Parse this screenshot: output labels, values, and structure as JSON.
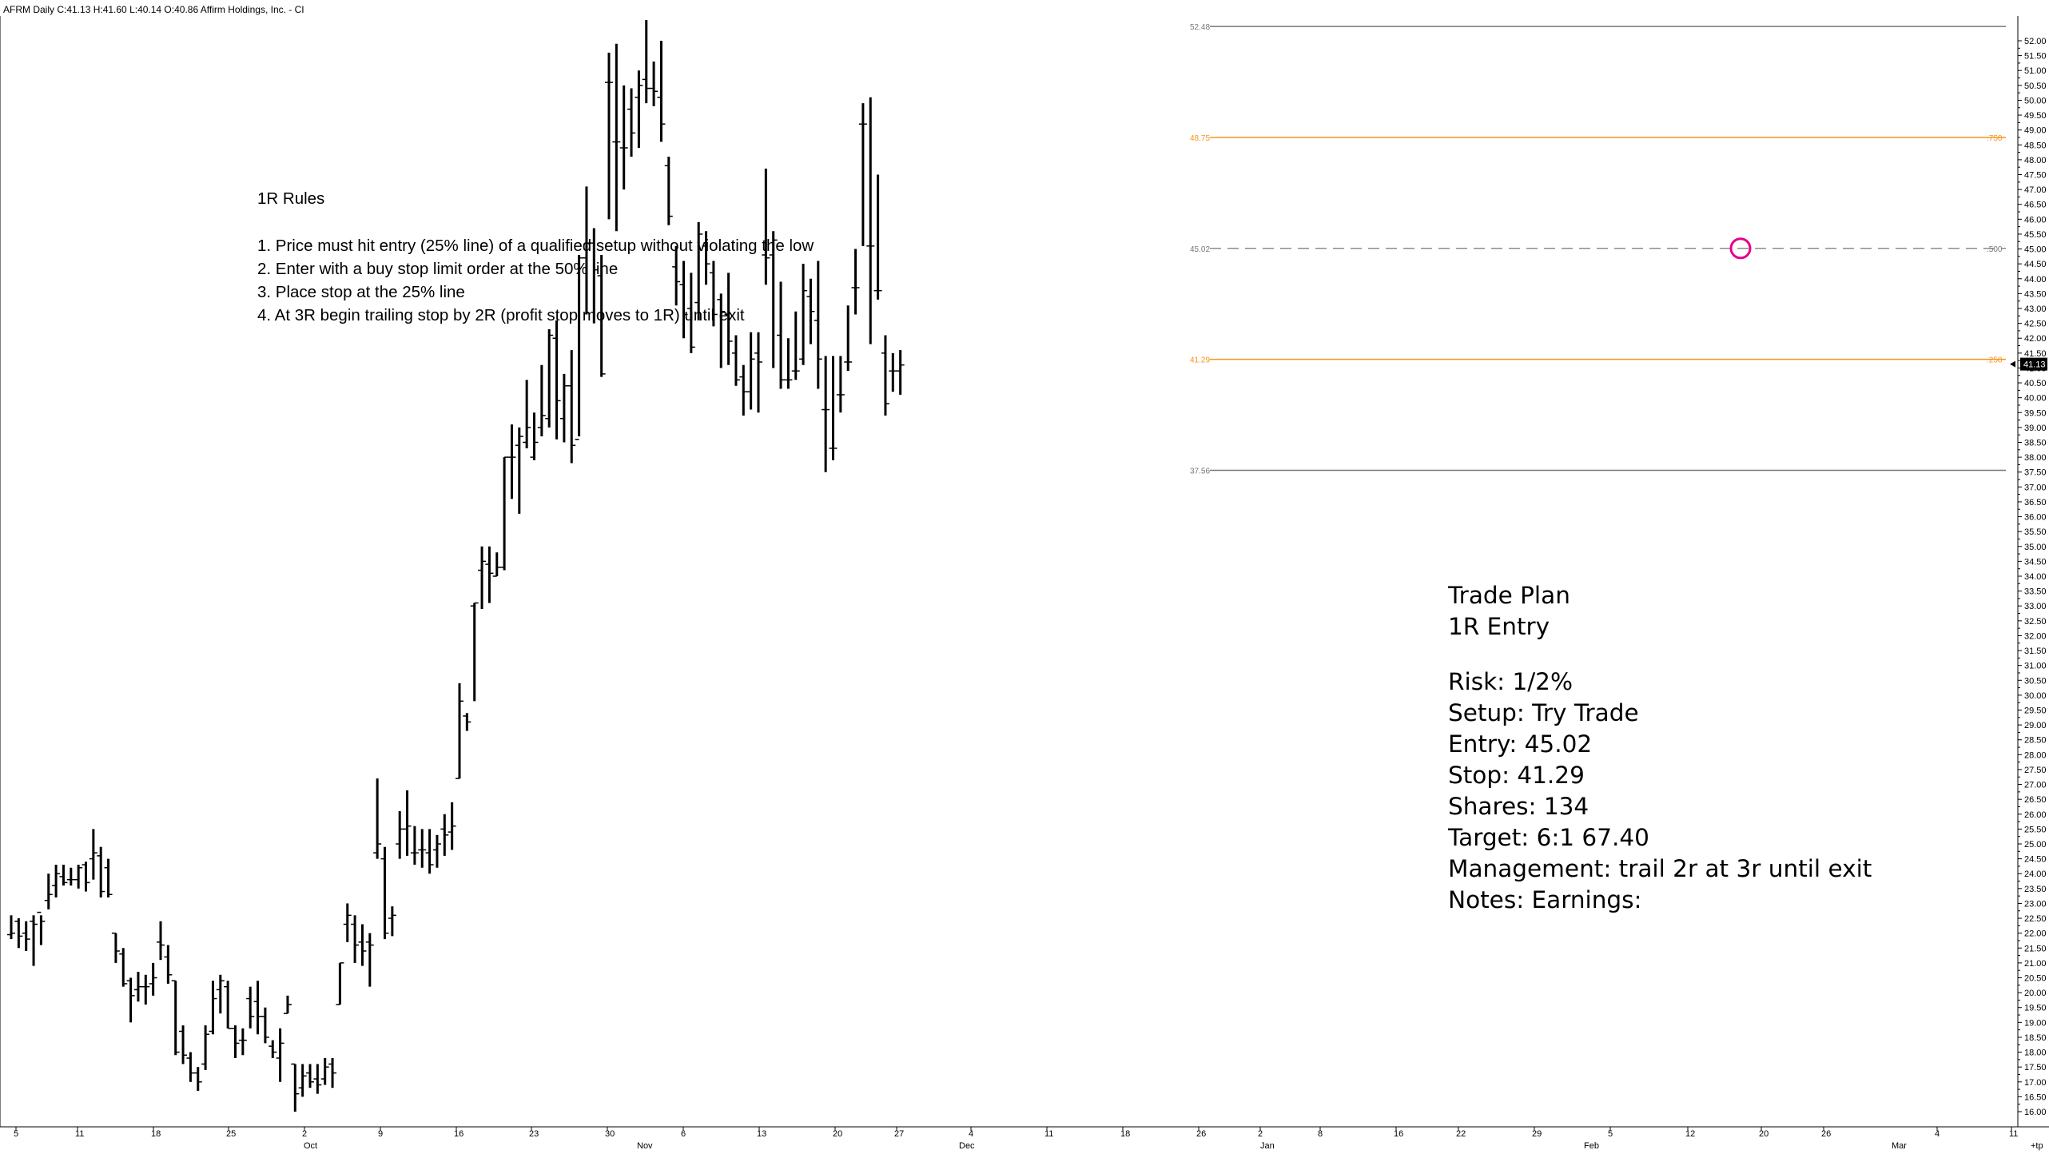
{
  "chart_data": {
    "type": "ohlc-bar",
    "header": "AFRM Daily C:41.13 H:41.60 L:40.14 O:40.86 Affirm Holdings, Inc. - CI",
    "y_range": [
      15.5,
      52.95
    ],
    "y_ticks": [
      "52.00",
      "51.50",
      "51.00",
      "50.50",
      "50.00",
      "49.50",
      "49.00",
      "48.50",
      "48.00",
      "47.50",
      "47.00",
      "46.50",
      "46.00",
      "45.50",
      "45.00",
      "44.50",
      "44.00",
      "43.50",
      "43.00",
      "42.50",
      "42.00",
      "41.50",
      "41.00",
      "40.50",
      "40.00",
      "39.50",
      "39.00",
      "38.50",
      "38.00",
      "37.50",
      "37.00",
      "36.50",
      "36.00",
      "35.50",
      "35.00",
      "34.50",
      "34.00",
      "33.50",
      "33.00",
      "32.50",
      "32.00",
      "31.50",
      "31.00",
      "30.50",
      "30.00",
      "29.50",
      "29.00",
      "28.50",
      "28.00",
      "27.50",
      "27.00",
      "26.50",
      "26.00",
      "25.50",
      "25.00",
      "24.50",
      "24.00",
      "23.50",
      "23.00",
      "22.50",
      "22.00",
      "21.50",
      "21.00",
      "20.50",
      "20.00",
      "19.50",
      "19.00",
      "18.50",
      "18.00",
      "17.50",
      "17.00",
      "16.50",
      "16.00"
    ],
    "last_price_label": "41.13",
    "x_day_labels": [
      "5",
      "11",
      "18",
      "25",
      "2",
      "9",
      "16",
      "23",
      "30",
      "6",
      "13",
      "20",
      "27",
      "4",
      "11",
      "18",
      "26",
      "2",
      "8",
      "16",
      "22",
      "29",
      "5",
      "12",
      "20",
      "26",
      "4",
      "11"
    ],
    "x_month_labels": [
      "Oct",
      "Nov",
      "Dec",
      "Jan",
      "Feb",
      "Mar"
    ],
    "x_end_label": "+tp",
    "bars": [
      {
        "o": 21.95,
        "h": 22.6,
        "l": 21.8,
        "c": 22.0
      },
      {
        "o": 22.4,
        "h": 22.5,
        "l": 21.5,
        "c": 21.9
      },
      {
        "o": 22.0,
        "h": 22.4,
        "l": 21.4,
        "c": 21.8
      },
      {
        "o": 22.4,
        "h": 22.6,
        "l": 20.9,
        "c": 22.3
      },
      {
        "o": 22.7,
        "h": 22.6,
        "l": 21.6,
        "c": 22.4
      },
      {
        "o": 23.1,
        "h": 24.0,
        "l": 22.8,
        "c": 23.3
      },
      {
        "o": 23.6,
        "h": 24.3,
        "l": 23.2,
        "c": 24.0
      },
      {
        "o": 23.9,
        "h": 24.3,
        "l": 23.6,
        "c": 23.7
      },
      {
        "o": 23.8,
        "h": 24.2,
        "l": 23.6,
        "c": 23.8
      },
      {
        "o": 23.8,
        "h": 24.3,
        "l": 23.5,
        "c": 24.2
      },
      {
        "o": 24.3,
        "h": 24.4,
        "l": 23.4,
        "c": 23.7
      },
      {
        "o": 24.5,
        "h": 25.5,
        "l": 23.8,
        "c": 24.7
      },
      {
        "o": 24.6,
        "h": 24.9,
        "l": 23.2,
        "c": 23.4
      },
      {
        "o": 24.2,
        "h": 24.5,
        "l": 23.2,
        "c": 23.3
      },
      {
        "o": 22.0,
        "h": 22.0,
        "l": 21.0,
        "c": 21.4
      },
      {
        "o": 21.3,
        "h": 21.5,
        "l": 20.2,
        "c": 20.3
      },
      {
        "o": 20.4,
        "h": 20.5,
        "l": 19.0,
        "c": 19.9
      },
      {
        "o": 20.1,
        "h": 20.7,
        "l": 19.7,
        "c": 20.2
      },
      {
        "o": 20.2,
        "h": 20.6,
        "l": 19.6,
        "c": 20.2
      },
      {
        "o": 20.3,
        "h": 21.0,
        "l": 19.9,
        "c": 20.5
      },
      {
        "o": 21.7,
        "h": 22.4,
        "l": 21.1,
        "c": 21.6
      },
      {
        "o": 21.2,
        "h": 21.6,
        "l": 20.3,
        "c": 20.6
      },
      {
        "o": 20.4,
        "h": 20.4,
        "l": 17.9,
        "c": 18.0
      },
      {
        "o": 18.7,
        "h": 18.9,
        "l": 17.6,
        "c": 17.9
      },
      {
        "o": 17.8,
        "h": 18.0,
        "l": 17.0,
        "c": 17.3
      },
      {
        "o": 17.3,
        "h": 17.5,
        "l": 16.7,
        "c": 17.0
      },
      {
        "o": 17.6,
        "h": 18.9,
        "l": 17.4,
        "c": 18.6
      },
      {
        "o": 18.7,
        "h": 20.4,
        "l": 18.6,
        "c": 19.8
      },
      {
        "o": 20.1,
        "h": 20.6,
        "l": 19.3,
        "c": 20.4
      },
      {
        "o": 20.2,
        "h": 20.4,
        "l": 18.8,
        "c": 18.8
      },
      {
        "o": 18.8,
        "h": 18.9,
        "l": 17.8,
        "c": 18.3
      },
      {
        "o": 18.4,
        "h": 18.8,
        "l": 17.9,
        "c": 18.4
      },
      {
        "o": 19.8,
        "h": 20.2,
        "l": 18.8,
        "c": 19.2
      },
      {
        "o": 19.7,
        "h": 20.4,
        "l": 18.6,
        "c": 19.2
      },
      {
        "o": 19.2,
        "h": 19.5,
        "l": 18.3,
        "c": 18.5
      },
      {
        "o": 18.2,
        "h": 18.4,
        "l": 17.8,
        "c": 18.0
      },
      {
        "o": 17.8,
        "h": 18.8,
        "l": 17.0,
        "c": 18.3
      },
      {
        "o": 19.3,
        "h": 19.9,
        "l": 19.3,
        "c": 19.6
      },
      {
        "o": 17.6,
        "h": 17.6,
        "l": 16.0,
        "c": 16.6
      },
      {
        "o": 16.8,
        "h": 17.6,
        "l": 16.5,
        "c": 17.2
      },
      {
        "o": 17.3,
        "h": 17.6,
        "l": 16.8,
        "c": 17.0
      },
      {
        "o": 17.1,
        "h": 17.6,
        "l": 16.6,
        "c": 16.9
      },
      {
        "o": 17.1,
        "h": 17.8,
        "l": 16.9,
        "c": 17.5
      },
      {
        "o": 17.6,
        "h": 17.8,
        "l": 16.8,
        "c": 17.3
      },
      {
        "o": 19.6,
        "h": 21.0,
        "l": 19.6,
        "c": 21.0
      },
      {
        "o": 22.3,
        "h": 23.0,
        "l": 21.7,
        "c": 22.6
      },
      {
        "o": 22.3,
        "h": 22.6,
        "l": 21.0,
        "c": 21.6
      },
      {
        "o": 21.7,
        "h": 22.3,
        "l": 20.9,
        "c": 21.4
      },
      {
        "o": 21.7,
        "h": 22.0,
        "l": 20.2,
        "c": 21.6
      },
      {
        "o": 24.7,
        "h": 27.2,
        "l": 24.5,
        "c": 25.0
      },
      {
        "o": 24.5,
        "h": 24.9,
        "l": 21.8,
        "c": 22.0
      },
      {
        "o": 22.5,
        "h": 22.9,
        "l": 21.9,
        "c": 22.6
      },
      {
        "o": 25.0,
        "h": 26.1,
        "l": 24.5,
        "c": 25.5
      },
      {
        "o": 25.5,
        "h": 26.8,
        "l": 24.6,
        "c": 25.6
      },
      {
        "o": 24.7,
        "h": 25.6,
        "l": 24.3,
        "c": 24.7
      },
      {
        "o": 24.8,
        "h": 25.5,
        "l": 24.2,
        "c": 24.8
      },
      {
        "o": 24.7,
        "h": 25.5,
        "l": 24.0,
        "c": 24.3
      },
      {
        "o": 24.8,
        "h": 25.3,
        "l": 24.2,
        "c": 25.0
      },
      {
        "o": 25.5,
        "h": 26.0,
        "l": 24.6,
        "c": 25.3
      },
      {
        "o": 25.4,
        "h": 26.4,
        "l": 24.8,
        "c": 25.6
      },
      {
        "o": 27.2,
        "h": 30.4,
        "l": 27.2,
        "c": 29.8
      },
      {
        "o": 29.3,
        "h": 29.4,
        "l": 28.8,
        "c": 29.1
      },
      {
        "o": 33.0,
        "h": 33.1,
        "l": 29.8,
        "c": 33.1
      },
      {
        "o": 34.2,
        "h": 35.0,
        "l": 32.9,
        "c": 34.5
      },
      {
        "o": 34.4,
        "h": 35.0,
        "l": 33.1,
        "c": 34.1
      },
      {
        "o": 34.0,
        "h": 34.8,
        "l": 34.0,
        "c": 34.3
      },
      {
        "o": 34.3,
        "h": 38.0,
        "l": 34.2,
        "c": 38.0
      },
      {
        "o": 38.0,
        "h": 39.1,
        "l": 36.6,
        "c": 38.0
      },
      {
        "o": 38.4,
        "h": 39.0,
        "l": 36.1,
        "c": 38.7
      },
      {
        "o": 38.5,
        "h": 40.6,
        "l": 38.3,
        "c": 39.0
      },
      {
        "o": 38.0,
        "h": 39.5,
        "l": 37.9,
        "c": 38.5
      },
      {
        "o": 39.0,
        "h": 41.1,
        "l": 38.7,
        "c": 39.4
      },
      {
        "o": 39.3,
        "h": 42.3,
        "l": 39.0,
        "c": 42.1
      },
      {
        "o": 42.0,
        "h": 42.6,
        "l": 38.6,
        "c": 39.9
      },
      {
        "o": 39.3,
        "h": 40.8,
        "l": 38.5,
        "c": 40.4
      },
      {
        "o": 40.4,
        "h": 41.6,
        "l": 37.8,
        "c": 38.4
      },
      {
        "o": 38.6,
        "h": 44.8,
        "l": 38.7,
        "c": 44.7
      },
      {
        "o": 44.7,
        "h": 47.1,
        "l": 42.8,
        "c": 45.2
      },
      {
        "o": 45.2,
        "h": 45.7,
        "l": 42.5,
        "c": 44.3
      },
      {
        "o": 44.1,
        "h": 44.8,
        "l": 40.7,
        "c": 40.8
      },
      {
        "o": 50.6,
        "h": 51.6,
        "l": 46.0,
        "c": 50.6
      },
      {
        "o": 48.6,
        "h": 51.9,
        "l": 45.6,
        "c": 48.6
      },
      {
        "o": 48.4,
        "h": 50.5,
        "l": 47.0,
        "c": 48.4
      },
      {
        "o": 49.7,
        "h": 50.4,
        "l": 48.1,
        "c": 48.9
      },
      {
        "o": 50.1,
        "h": 51.0,
        "l": 48.4,
        "c": 50.5
      },
      {
        "o": 50.7,
        "h": 52.7,
        "l": 49.9,
        "c": 50.4
      },
      {
        "o": 50.4,
        "h": 51.3,
        "l": 49.8,
        "c": 50.3
      },
      {
        "o": 50.1,
        "h": 52.0,
        "l": 48.6,
        "c": 49.2
      },
      {
        "o": 47.8,
        "h": 48.1,
        "l": 45.8,
        "c": 46.1
      },
      {
        "o": 44.4,
        "h": 45.1,
        "l": 43.1,
        "c": 43.9
      },
      {
        "o": 43.8,
        "h": 44.6,
        "l": 42.0,
        "c": 42.8
      },
      {
        "o": 43.0,
        "h": 44.2,
        "l": 41.5,
        "c": 41.7
      },
      {
        "o": 43.2,
        "h": 45.9,
        "l": 42.6,
        "c": 45.5
      },
      {
        "o": 45.1,
        "h": 45.6,
        "l": 43.8,
        "c": 44.5
      },
      {
        "o": 44.2,
        "h": 44.6,
        "l": 42.4,
        "c": 42.8
      },
      {
        "o": 43.3,
        "h": 43.5,
        "l": 41.0,
        "c": 42.9
      },
      {
        "o": 42.8,
        "h": 44.2,
        "l": 41.1,
        "c": 41.9
      },
      {
        "o": 41.5,
        "h": 42.1,
        "l": 40.4,
        "c": 40.6
      },
      {
        "o": 40.7,
        "h": 41.1,
        "l": 39.4,
        "c": 40.2
      },
      {
        "o": 40.2,
        "h": 42.2,
        "l": 39.6,
        "c": 41.3
      },
      {
        "o": 41.5,
        "h": 42.2,
        "l": 39.5,
        "c": 41.2
      },
      {
        "o": 44.8,
        "h": 47.7,
        "l": 43.8,
        "c": 44.7
      },
      {
        "o": 44.8,
        "h": 45.6,
        "l": 41.0,
        "c": 45.3
      },
      {
        "o": 42.1,
        "h": 43.9,
        "l": 40.3,
        "c": 40.6
      },
      {
        "o": 40.6,
        "h": 42.0,
        "l": 40.3,
        "c": 40.6
      },
      {
        "o": 40.9,
        "h": 42.9,
        "l": 40.6,
        "c": 40.9
      },
      {
        "o": 41.3,
        "h": 44.5,
        "l": 41.1,
        "c": 43.6
      },
      {
        "o": 43.4,
        "h": 44.0,
        "l": 41.8,
        "c": 42.9
      },
      {
        "o": 42.6,
        "h": 44.6,
        "l": 40.3,
        "c": 41.3
      },
      {
        "o": 39.6,
        "h": 41.4,
        "l": 37.5,
        "c": 39.6
      },
      {
        "o": 38.3,
        "h": 41.4,
        "l": 37.9,
        "c": 38.3
      },
      {
        "o": 40.1,
        "h": 41.4,
        "l": 39.5,
        "c": 40.1
      },
      {
        "o": 41.2,
        "h": 43.1,
        "l": 40.9,
        "c": 41.2
      },
      {
        "o": 43.7,
        "h": 45.0,
        "l": 42.8,
        "c": 43.7
      },
      {
        "o": 49.2,
        "h": 49.9,
        "l": 45.1,
        "c": 49.2
      },
      {
        "o": 45.1,
        "h": 50.1,
        "l": 41.8,
        "c": 45.1
      },
      {
        "o": 43.6,
        "h": 47.5,
        "l": 43.3,
        "c": 43.6
      },
      {
        "o": 41.5,
        "h": 42.1,
        "l": 39.4,
        "c": 39.8
      },
      {
        "o": 40.9,
        "h": 41.5,
        "l": 40.2,
        "c": 40.9
      },
      {
        "o": 40.9,
        "h": 41.6,
        "l": 40.1,
        "c": 41.1
      }
    ],
    "levels": [
      {
        "value": 52.48,
        "label": "52.48",
        "ratio": "",
        "color": "#777777",
        "style": "solid"
      },
      {
        "value": 48.75,
        "label": "48.75",
        "ratio": ".750",
        "color": "#f7941d",
        "style": "solid"
      },
      {
        "value": 45.02,
        "label": "45.02",
        "ratio": ".500",
        "color": "#8c8c8c",
        "style": "dashed"
      },
      {
        "value": 41.29,
        "label": "41.29",
        "ratio": ".250",
        "color": "#f7941d",
        "style": "solid"
      },
      {
        "value": 37.56,
        "label": "37.56",
        "ratio": "",
        "color": "#777777",
        "style": "solid"
      }
    ],
    "entry_marker": {
      "value": 45.02,
      "color": "#e6008a"
    }
  },
  "rules": {
    "title": "1R Rules",
    "items": [
      "1. Price must hit entry (25% line) of a qualified setup without violating the low",
      "2. Enter with a buy stop limit order at the 50% line",
      "3. Place stop at the 25% line",
      "4. At 3R begin trailing stop by 2R (profit stop moves to 1R) until exit"
    ]
  },
  "plan": {
    "title": "Trade Plan",
    "subtitle": "1R Entry",
    "risk": "Risk: 1/2%",
    "setup": "Setup: Try Trade",
    "entry": "Entry: 45.02",
    "stop": "Stop: 41.29",
    "shares": "Shares: 134",
    "target": "Target: 6:1  67.40",
    "management": "Management: trail 2r at 3r until exit",
    "notes": "Notes: Earnings:"
  }
}
